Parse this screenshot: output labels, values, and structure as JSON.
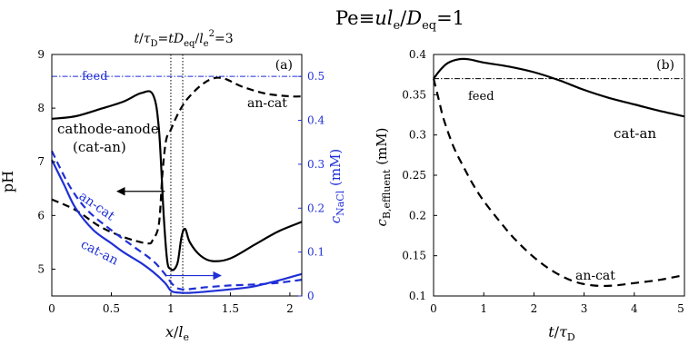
{
  "figure": {
    "title_parts": {
      "pe": "Pe",
      "eq": "≡",
      "u": "u",
      "l": "l",
      "lsub": "e",
      "slash": "/",
      "d": "D",
      "dsub": "eq",
      "val": "=1"
    },
    "colors": {
      "black": "#000000",
      "blue": "#1f2fd6",
      "feed_blue": "#1f2fd6"
    }
  },
  "chart_data": [
    {
      "type": "line",
      "panel_label": "(a)",
      "annotation_top": {
        "t": "t",
        "slash": "/",
        "tau": "τ",
        "tausub": "D",
        "eq1": "=",
        "t2": "t",
        "d": "D",
        "dsub": "eq",
        "slash2": "/",
        "l": "l",
        "lsub": "e",
        "lsup": "2",
        "val": "=3"
      },
      "xlabel": {
        "x": "x",
        "slash": "/",
        "l": "l",
        "lsub": "e"
      },
      "ylabel_left": "pH",
      "ylabel_right": {
        "c": "c",
        "sub": "NaCl",
        "unit": " (mM)"
      },
      "xlim": [
        0,
        2.1
      ],
      "ylim_left": [
        4.5,
        9
      ],
      "ylim_right": [
        0,
        0.55
      ],
      "x_ticks": [
        "0",
        "0.5",
        "1",
        "1.5",
        "2"
      ],
      "x_tick_values": [
        0,
        0.5,
        1,
        1.5,
        2
      ],
      "y_ticks_left": [
        "5",
        "6",
        "7",
        "8",
        "9"
      ],
      "y_tick_values_left": [
        5,
        6,
        7,
        8,
        9
      ],
      "y_ticks_right": [
        "0",
        "0.1",
        "0.2",
        "0.3",
        "0.4",
        "0.5"
      ],
      "y_tick_values_right": [
        0,
        0.1,
        0.2,
        0.3,
        0.4,
        0.5
      ],
      "vlines": [
        1.0,
        1.1
      ],
      "feed_value_right": 0.5,
      "labels": {
        "feed": "feed",
        "an_cat_top": "an-cat",
        "cathode_anode": "cathode-anode",
        "cat_an_paren": "(cat-an)",
        "an_cat_blue": "an-cat",
        "cat_an_blue": "cat-an"
      },
      "series": [
        {
          "axis": "left",
          "style": "solid",
          "color": "#000000",
          "points": [
            [
              0,
              7.8
            ],
            [
              0.2,
              7.85
            ],
            [
              0.4,
              7.98
            ],
            [
              0.6,
              8.12
            ],
            [
              0.75,
              8.28
            ],
            [
              0.85,
              8.25
            ],
            [
              0.9,
              7.6
            ],
            [
              0.94,
              6.0
            ],
            [
              0.97,
              5.15
            ],
            [
              1.0,
              5.0
            ],
            [
              1.03,
              5.0
            ],
            [
              1.06,
              5.15
            ],
            [
              1.09,
              5.6
            ],
            [
              1.12,
              5.75
            ],
            [
              1.16,
              5.5
            ],
            [
              1.25,
              5.25
            ],
            [
              1.35,
              5.15
            ],
            [
              1.5,
              5.2
            ],
            [
              1.7,
              5.45
            ],
            [
              1.9,
              5.7
            ],
            [
              2.1,
              5.88
            ]
          ]
        },
        {
          "axis": "left",
          "style": "dashed",
          "color": "#000000",
          "points": [
            [
              0,
              6.3
            ],
            [
              0.2,
              6.1
            ],
            [
              0.4,
              5.8
            ],
            [
              0.6,
              5.6
            ],
            [
              0.8,
              5.48
            ],
            [
              0.85,
              5.55
            ],
            [
              0.9,
              5.85
            ],
            [
              0.93,
              6.8
            ],
            [
              0.96,
              7.4
            ],
            [
              1.0,
              7.6
            ],
            [
              1.05,
              7.85
            ],
            [
              1.1,
              8.05
            ],
            [
              1.15,
              8.2
            ],
            [
              1.25,
              8.42
            ],
            [
              1.35,
              8.55
            ],
            [
              1.45,
              8.55
            ],
            [
              1.6,
              8.4
            ],
            [
              1.8,
              8.27
            ],
            [
              2.0,
              8.22
            ],
            [
              2.1,
              8.22
            ]
          ]
        },
        {
          "axis": "right",
          "style": "solid",
          "color": "#1f2fd6",
          "points": [
            [
              0,
              0.31
            ],
            [
              0.1,
              0.255
            ],
            [
              0.2,
              0.2
            ],
            [
              0.35,
              0.15
            ],
            [
              0.5,
              0.12
            ],
            [
              0.6,
              0.1
            ],
            [
              0.75,
              0.075
            ],
            [
              0.85,
              0.055
            ],
            [
              0.95,
              0.03
            ],
            [
              1.0,
              0.012
            ],
            [
              1.05,
              0.008
            ],
            [
              1.15,
              0.007
            ],
            [
              1.3,
              0.01
            ],
            [
              1.5,
              0.015
            ],
            [
              1.7,
              0.022
            ],
            [
              1.9,
              0.035
            ],
            [
              2.1,
              0.05
            ]
          ]
        },
        {
          "axis": "right",
          "style": "dashed",
          "color": "#1f2fd6",
          "points": [
            [
              0,
              0.33
            ],
            [
              0.15,
              0.25
            ],
            [
              0.3,
              0.195
            ],
            [
              0.5,
              0.15
            ],
            [
              0.7,
              0.11
            ],
            [
              0.85,
              0.08
            ],
            [
              0.95,
              0.05
            ],
            [
              1.02,
              0.025
            ],
            [
              1.1,
              0.015
            ],
            [
              1.3,
              0.02
            ],
            [
              1.5,
              0.024
            ],
            [
              1.7,
              0.026
            ],
            [
              1.9,
              0.03
            ],
            [
              2.1,
              0.037
            ]
          ]
        }
      ],
      "arrows": [
        {
          "axis": "left",
          "from": [
            0.95,
            6.45
          ],
          "to": [
            0.55,
            6.45
          ]
        },
        {
          "axis": "left",
          "from": [
            0.95,
            4.88
          ],
          "to": [
            1.42,
            4.88
          ]
        }
      ]
    },
    {
      "type": "line",
      "panel_label": "(b)",
      "xlabel": {
        "t": "t",
        "slash": "/",
        "tau": "τ",
        "sub": "D"
      },
      "ylabel": {
        "c": "c",
        "sub": "B,effluent",
        "unit": " (mM)"
      },
      "xlim": [
        0,
        5
      ],
      "ylim": [
        0.1,
        0.4
      ],
      "x_ticks": [
        "0",
        "1",
        "2",
        "3",
        "4",
        "5"
      ],
      "x_tick_values": [
        0,
        1,
        2,
        3,
        4,
        5
      ],
      "y_ticks": [
        "0.1",
        "0.15",
        "0.2",
        "0.25",
        "0.3",
        "0.35",
        "0.4"
      ],
      "y_tick_values": [
        0.1,
        0.15,
        0.2,
        0.25,
        0.3,
        0.35,
        0.4
      ],
      "feed_value": 0.37,
      "labels": {
        "feed": "feed",
        "cat_an": "cat-an",
        "an_cat": "an-cat"
      },
      "series": [
        {
          "style": "solid",
          "color": "#000000",
          "points": [
            [
              0,
              0.37
            ],
            [
              0.15,
              0.382
            ],
            [
              0.3,
              0.39
            ],
            [
              0.5,
              0.394
            ],
            [
              0.7,
              0.394
            ],
            [
              1.0,
              0.39
            ],
            [
              1.5,
              0.385
            ],
            [
              2.0,
              0.378
            ],
            [
              2.5,
              0.368
            ],
            [
              3.0,
              0.356
            ],
            [
              3.5,
              0.346
            ],
            [
              4.0,
              0.338
            ],
            [
              4.5,
              0.33
            ],
            [
              5.0,
              0.323
            ]
          ]
        },
        {
          "style": "dashed",
          "color": "#000000",
          "points": [
            [
              0,
              0.37
            ],
            [
              0.1,
              0.345
            ],
            [
              0.2,
              0.32
            ],
            [
              0.4,
              0.285
            ],
            [
              0.6,
              0.26
            ],
            [
              0.8,
              0.237
            ],
            [
              1.0,
              0.218
            ],
            [
              1.3,
              0.194
            ],
            [
              1.6,
              0.172
            ],
            [
              2.0,
              0.148
            ],
            [
              2.4,
              0.13
            ],
            [
              2.8,
              0.118
            ],
            [
              3.2,
              0.113
            ],
            [
              3.6,
              0.113
            ],
            [
              4.0,
              0.116
            ],
            [
              4.5,
              0.12
            ],
            [
              5.0,
              0.126
            ]
          ]
        }
      ]
    }
  ]
}
